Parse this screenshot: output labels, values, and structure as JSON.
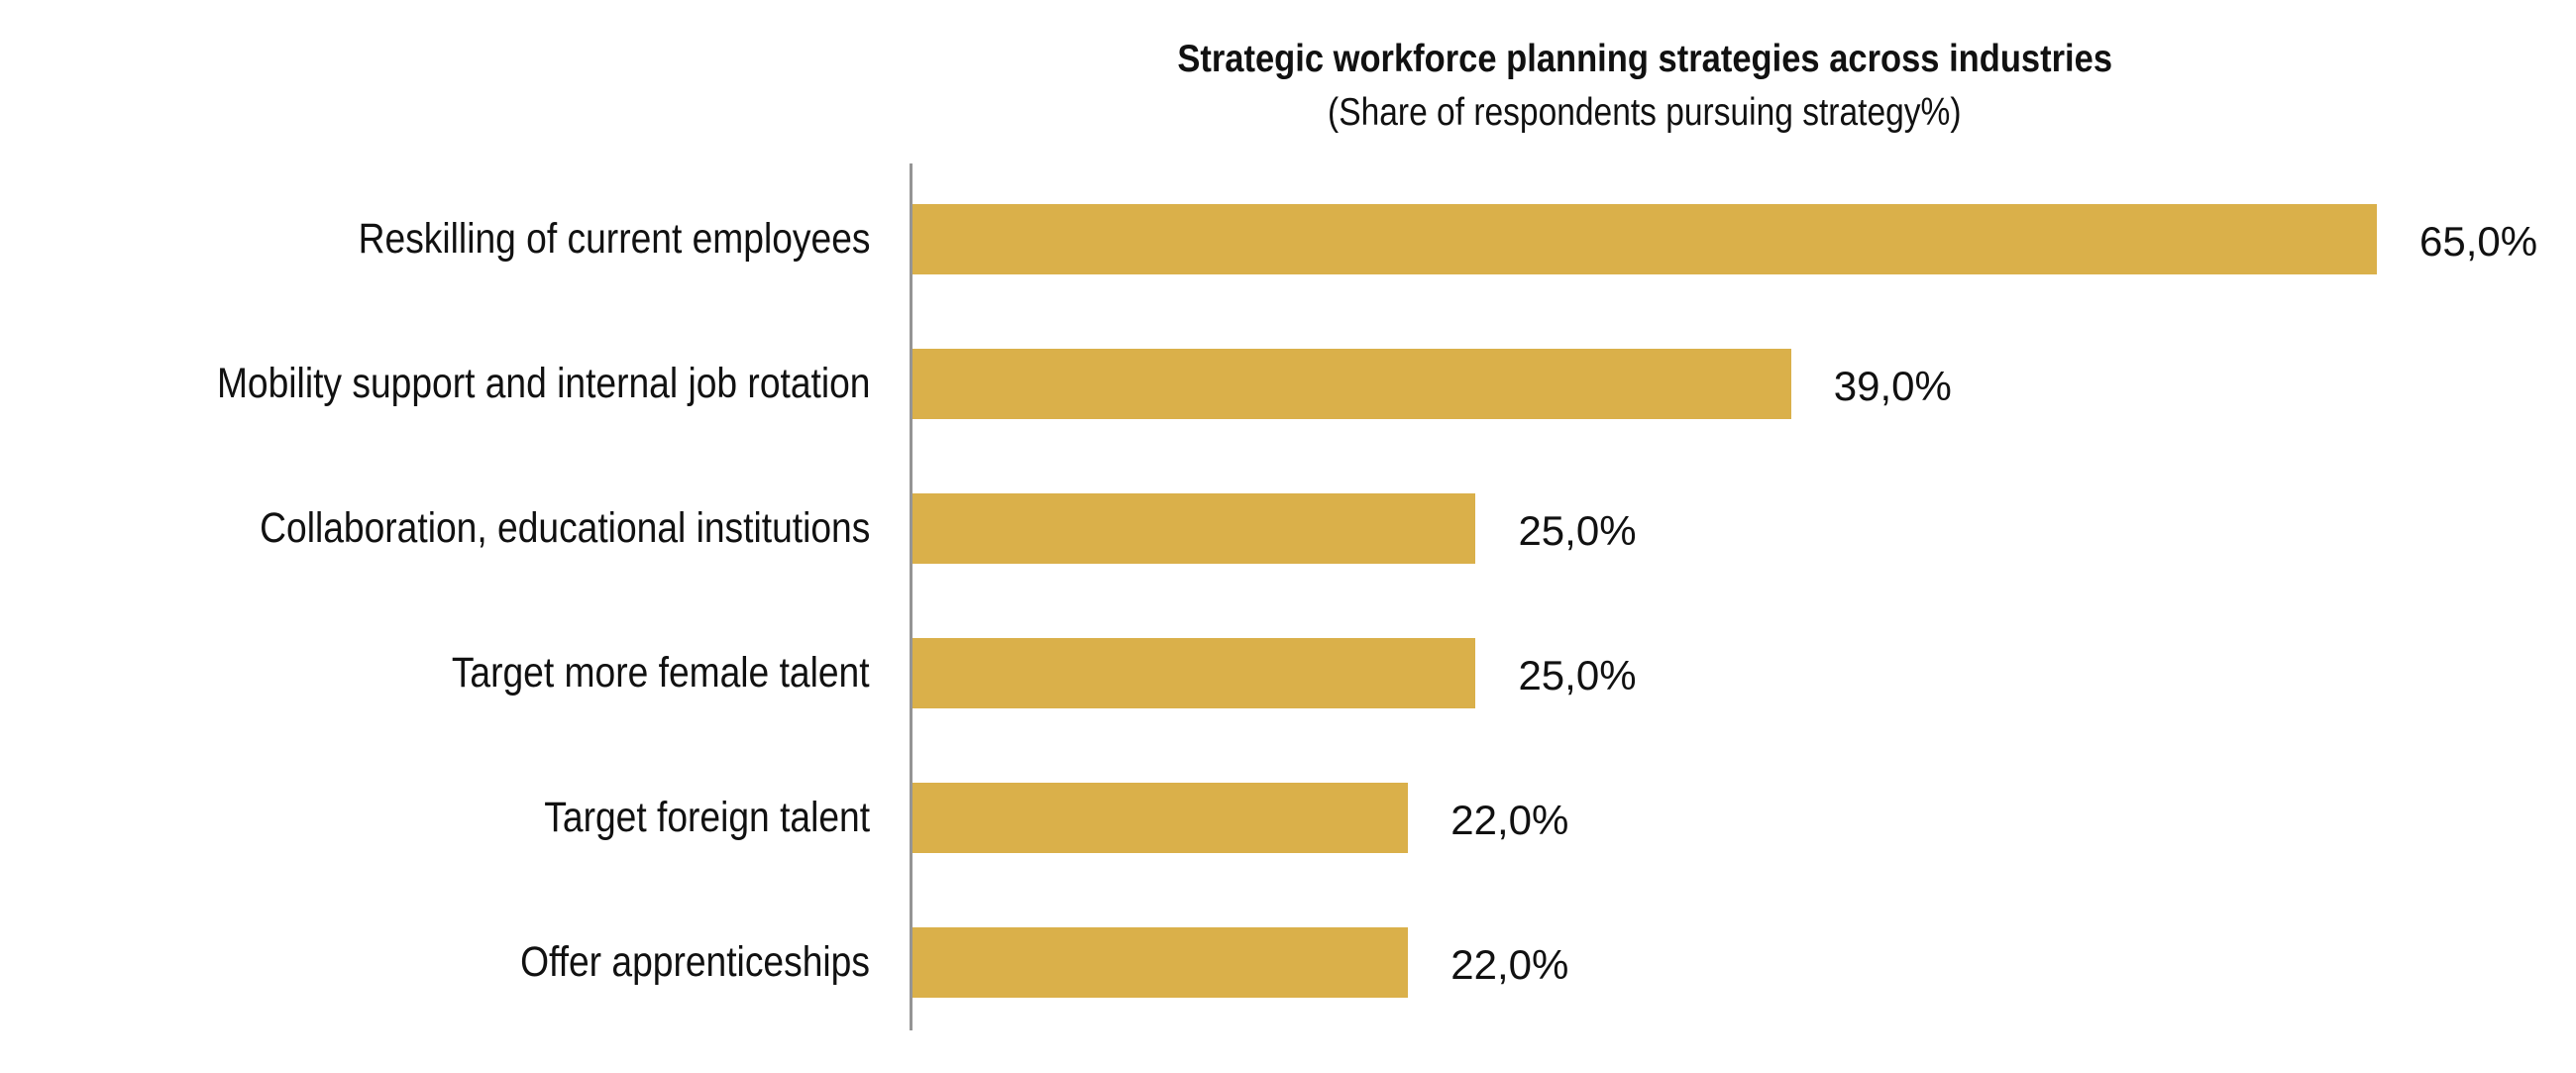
{
  "chart_data": {
    "type": "bar",
    "orientation": "horizontal",
    "title": "Strategic workforce planning strategies across industries",
    "subtitle": "(Share of respondents pursuing strategy%)",
    "xlabel": "",
    "ylabel": "",
    "categories": [
      "Reskilling of current employees",
      "Mobility support and internal job rotation",
      "Collaboration, educational institutions",
      "Target more female talent",
      "Target foreign talent",
      "Offer apprenticeships"
    ],
    "values": [
      65.0,
      39.0,
      25.0,
      25.0,
      22.0,
      22.0
    ],
    "value_labels": [
      "65,0%",
      "39,0%",
      "25,0%",
      "25,0%",
      "22,0%",
      "22,0%"
    ],
    "unit": "%",
    "xlim": [
      0,
      65
    ],
    "grid": false,
    "legend": null,
    "bar_color": "#DAB04A",
    "axis_color": "#959595"
  },
  "rows": [
    {
      "label": "Reskilling of current employees",
      "value": 65.0,
      "value_label": "65,0%"
    },
    {
      "label": "Mobility support and internal job rotation",
      "value": 39.0,
      "value_label": "39,0%"
    },
    {
      "label": "Collaboration, educational institutions",
      "value": 25.0,
      "value_label": "25,0%"
    },
    {
      "label": "Target more female talent",
      "value": 25.0,
      "value_label": "25,0%"
    },
    {
      "label": "Target foreign talent",
      "value": 22.0,
      "value_label": "22,0%"
    },
    {
      "label": "Offer apprenticeships",
      "value": 22.0,
      "value_label": "22,0%"
    }
  ]
}
